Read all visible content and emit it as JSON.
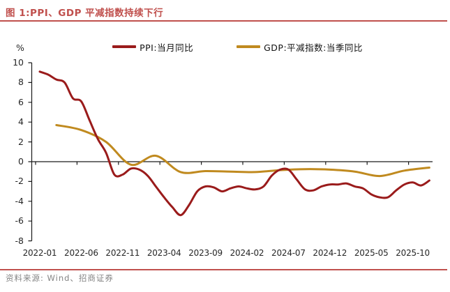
{
  "title": "图 1:PPI、GDP 平减指数持续下行",
  "source": "资料来源: Wind、招商证券",
  "accent_color": "#c0504d",
  "chart_data": {
    "type": "line",
    "title": "图 1:PPI、GDP 平减指数持续下行",
    "unit_label": "%",
    "xlabel": "",
    "ylabel": "%",
    "ylim": [
      -8,
      10
    ],
    "ytick_step": 2,
    "yticks": [
      10,
      8,
      6,
      4,
      2,
      0,
      -2,
      -4,
      -6,
      -8
    ],
    "xticks": [
      "2022-01",
      "2022-06",
      "2022-11",
      "2023-04",
      "2023-09",
      "2024-02",
      "2024-07",
      "2024-12",
      "2025-05",
      "2025-10"
    ],
    "xtick_month_step": 5,
    "x_unit": "months since 2022-01",
    "grid": false,
    "legend_position": "top-center",
    "axis_color": "#1a1a1a",
    "series": [
      {
        "name": "PPI:当月同比",
        "color": "#9a1b1b",
        "frequency": "monthly",
        "start_month": 0,
        "month_step": 1,
        "values": [
          9.1,
          8.8,
          8.3,
          8.0,
          6.4,
          6.1,
          4.2,
          2.3,
          0.9,
          -1.3,
          -1.3,
          -0.7,
          -0.8,
          -1.4,
          -2.5,
          -3.6,
          -4.6,
          -5.4,
          -4.4,
          -3.0,
          -2.5,
          -2.6,
          -3.0,
          -2.7,
          -2.5,
          -2.7,
          -2.8,
          -2.5,
          -1.4,
          -0.8,
          -0.8,
          -1.8,
          -2.8,
          -2.9,
          -2.5,
          -2.3,
          -2.3,
          -2.2,
          -2.5,
          -2.7,
          -3.3,
          -3.6,
          -3.6,
          -2.9,
          -2.3,
          -2.1,
          -2.4,
          -1.9
        ]
      },
      {
        "name": "GDP:平减指数:当季同比",
        "color": "#c08a1f",
        "frequency": "quarterly",
        "start_month": 2,
        "month_step": 3,
        "values": [
          3.7,
          3.2,
          2.0,
          -0.3,
          0.6,
          -1.05,
          -0.95,
          -1.0,
          -1.05,
          -0.85,
          -0.75,
          -0.8,
          -1.0,
          -1.45,
          -0.9,
          -0.6
        ]
      }
    ]
  }
}
